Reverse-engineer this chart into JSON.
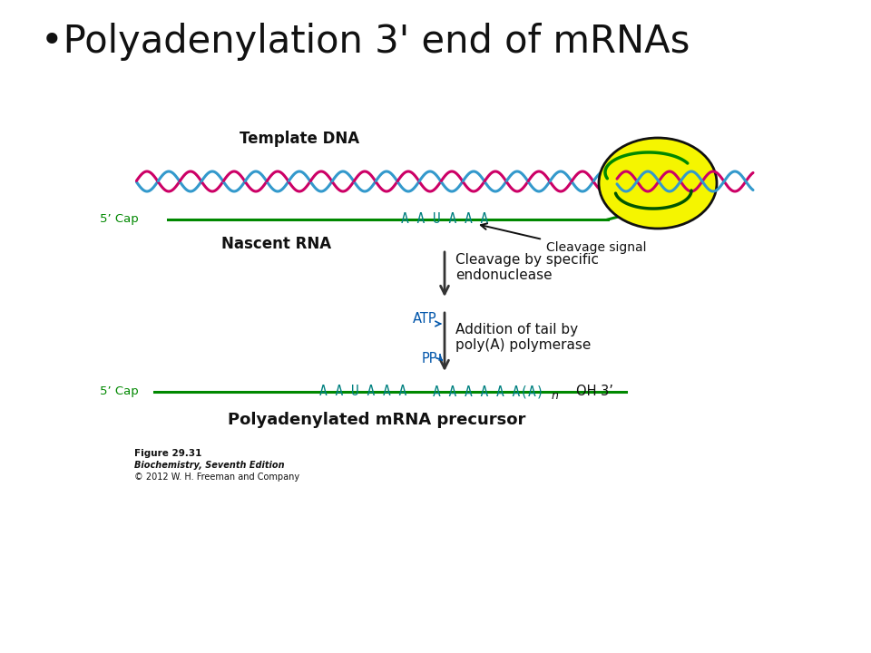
{
  "title": "•Polyadenylation 3' end of mRNAs",
  "title_fontsize": 30,
  "background_color": "#ffffff",
  "dna_label": "Template DNA",
  "nascent_rna_label": "Nascent RNA",
  "cleavage_signal_label": "Cleavage signal",
  "cleavage_text": "Cleavage by specific\nendonuclease",
  "atp_label": "ATP",
  "ppi_label": "PP",
  "ppi_sub": "i",
  "addition_text": "Addition of tail by\npoly(A) polymerase",
  "bottom_label": "Polyadenylated mRNA precursor",
  "figure_line1": "Figure 29.31",
  "figure_line2": "Biochemistry, Seventh Edition",
  "figure_line3": "© 2012 W. H. Freeman and Company",
  "green_color": "#008800",
  "teal_color": "#008080",
  "pink_color": "#cc0066",
  "blue_dna_color": "#3399cc",
  "blue_text_color": "#0055aa",
  "black_color": "#111111",
  "yellow_fill": "#f5f500",
  "yellow_grad": "#e8e800",
  "dark_green": "#005500",
  "blob_edge": "#111111",
  "arrow_color": "#333333"
}
